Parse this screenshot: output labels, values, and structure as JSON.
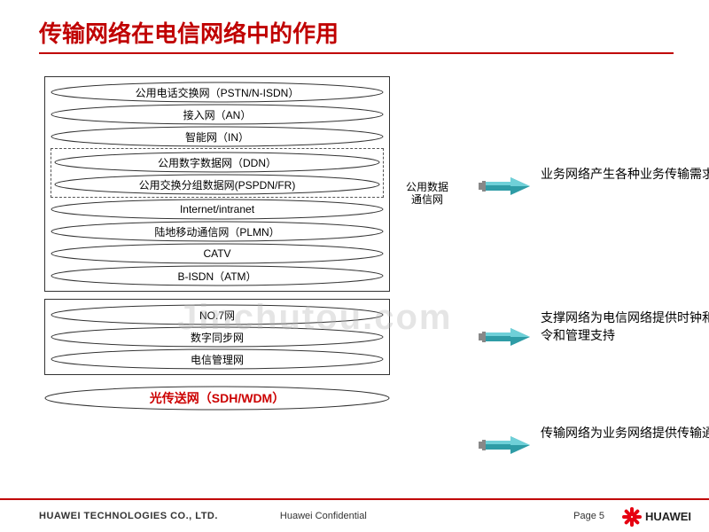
{
  "title": "传输网络在电信网络中的作用",
  "group1": {
    "rows": [
      "公用电话交换网（PSTN/N-ISDN）",
      "接入网（AN）",
      "智能网（IN）"
    ],
    "dashedRows": [
      "公用数字数据网（DDN）",
      "公用交换分组数据网(PSPDN/FR)"
    ],
    "dashedLabel": "公用数据\n通信网",
    "rowsAfter": [
      "Internet/intranet",
      "陆地移动通信网（PLMN）",
      "CATV",
      "B-ISDN（ATM）"
    ]
  },
  "group2": {
    "rows": [
      "NO.7网",
      "数字同步网",
      "电信管理网"
    ]
  },
  "bottomEllipse": {
    "label": "光传送网（SDH/WDM）",
    "color": "#c00"
  },
  "descriptions": [
    "业务网络产生各种业务传输需求",
    "支撑网络为电信网络提供时钟和信令和管理支持",
    "传输网络为业务网络提供传输通道"
  ],
  "desc_tops": [
    100,
    262,
    392
  ],
  "arrow_tops": [
    112,
    282,
    404
  ],
  "dashLabelTop": 118,
  "ellipseStyle": {
    "stroke": "#333",
    "fill": "none",
    "strokeWidth": 1
  },
  "arrowStyle": {
    "body": "#2e9ca6",
    "bodyLight": "#6fd0d8",
    "handle": "#888"
  },
  "watermark": "Jinchutou.com",
  "footer": {
    "company": "HUAWEI TECHNOLOGIES  CO., LTD.",
    "conf": "Huawei  Confidential",
    "page": "Page 5",
    "brand": "HUAWEI"
  }
}
